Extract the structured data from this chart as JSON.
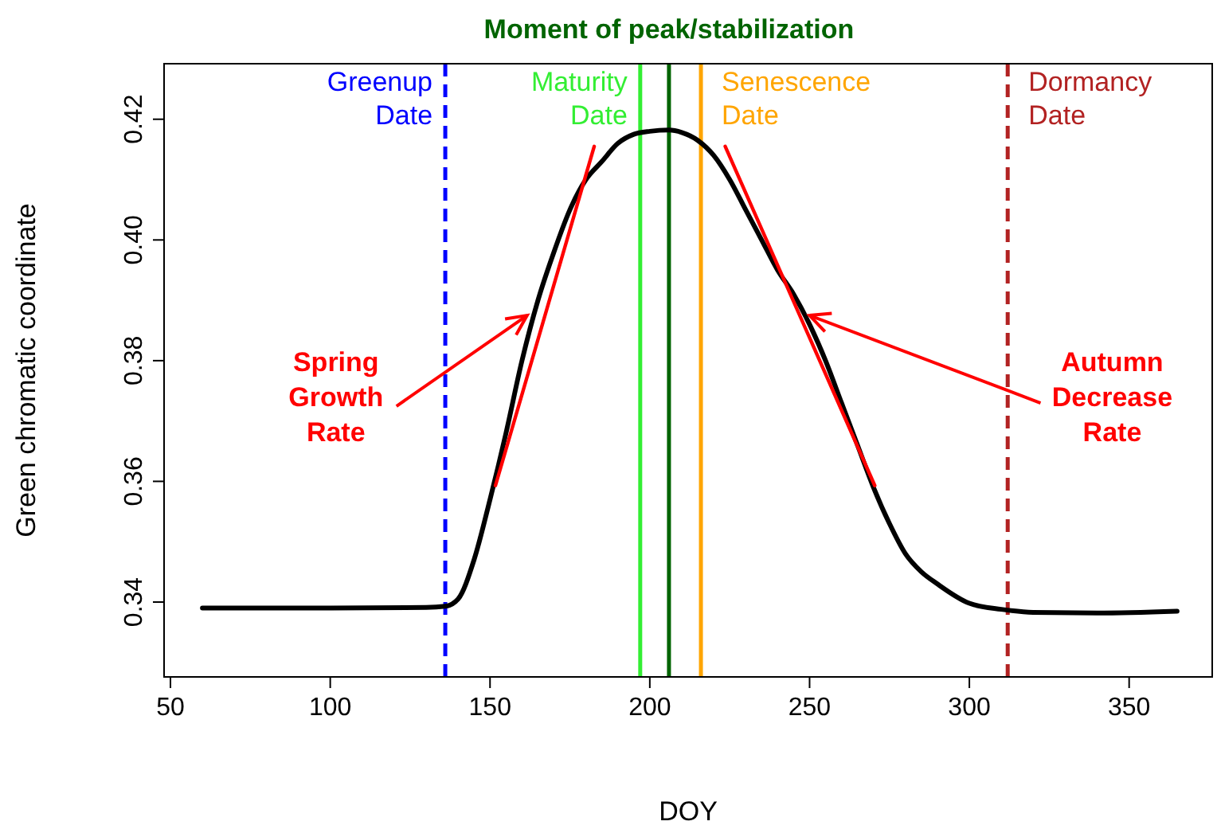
{
  "chart_data": {
    "type": "line",
    "xlabel": "DOY",
    "ylabel": "Green chromatic coordinate",
    "xlim": [
      48,
      376
    ],
    "ylim": [
      0.3276,
      0.4292
    ],
    "xticks": [
      50,
      100,
      150,
      200,
      250,
      300,
      350
    ],
    "yticks": [
      0.34,
      0.36,
      0.38,
      {
        "value": 0.4,
        "label": "0.40"
      },
      0.42
    ],
    "grid": false,
    "marker": "none",
    "line_style": "solid",
    "series": [
      {
        "color": "#000000",
        "x": [
          60,
          100,
          130,
          136,
          140,
          145,
          150,
          155,
          160,
          165,
          170,
          175,
          180,
          185,
          190,
          195,
          200,
          206,
          210,
          215,
          220,
          225,
          230,
          235,
          240,
          245,
          250,
          255,
          260,
          265,
          270,
          275,
          280,
          285,
          290,
          300,
          310,
          320,
          340,
          365
        ],
        "values": [
          0.339,
          0.339,
          0.3391,
          0.3393,
          0.3405,
          0.347,
          0.357,
          0.368,
          0.38,
          0.39,
          0.398,
          0.405,
          0.41,
          0.413,
          0.416,
          0.4175,
          0.418,
          0.4182,
          0.4178,
          0.4165,
          0.414,
          0.41,
          0.405,
          0.4,
          0.395,
          0.391,
          0.386,
          0.38,
          0.373,
          0.366,
          0.359,
          0.353,
          0.348,
          0.345,
          0.343,
          0.3398,
          0.3388,
          0.3383,
          0.3382,
          0.3385
        ]
      },
      {
        "color": "#ff0000",
        "x": [
          151.7,
          182.6
        ],
        "values": [
          0.3593,
          0.4155
        ]
      },
      {
        "color": "#ff0000",
        "x": [
          223.6,
          270.4
        ],
        "values": [
          0.4155,
          0.3593
        ]
      }
    ],
    "ref_lines": [
      {
        "axis": "x",
        "value": 136,
        "label": "Greenup\nDate",
        "color": "#0000ff",
        "line_style": "dashed"
      },
      {
        "axis": "x",
        "value": 197,
        "label": "Maturity\nDate",
        "color": "#33ee33",
        "line_style": "solid"
      },
      {
        "axis": "x",
        "value": 206,
        "label": "Moment of peak/stabilization",
        "color": "#006400",
        "line_style": "solid"
      },
      {
        "axis": "x",
        "value": 216,
        "label": "Senescence\nDate",
        "color": "#ffa500",
        "line_style": "solid"
      },
      {
        "axis": "x",
        "value": 312,
        "label": "Dormancy\nDate",
        "color": "#b22222",
        "line_style": "dashed"
      }
    ],
    "annotations": [
      {
        "text": "Spring\nGrowth\nRate",
        "x": 161.6,
        "y": 0.3875
      },
      {
        "text": "Autumn\nDecrease\nRate",
        "x": 250,
        "y": 0.3875
      }
    ]
  }
}
